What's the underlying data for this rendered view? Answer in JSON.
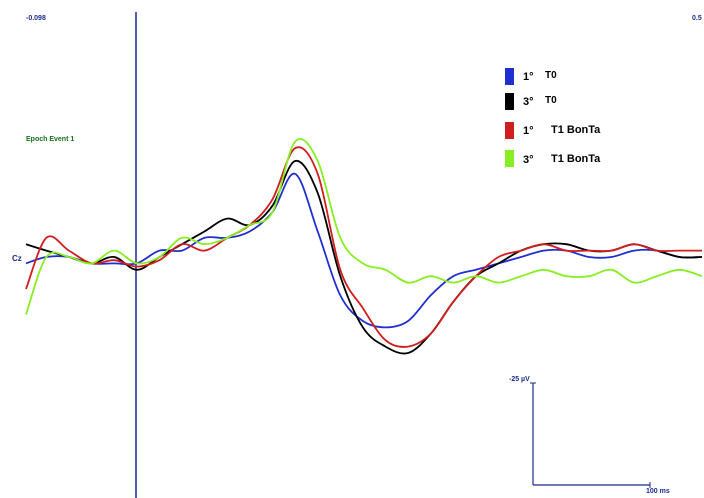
{
  "header": {
    "time_start": "-0.098",
    "time_end": "0.5",
    "epoch_label": "Epoch Event 1"
  },
  "channel_label": "Cz",
  "scale_bar": {
    "amplitude_label": "-25 µV",
    "time_label": "100 ms"
  },
  "legend": [
    {
      "order": "1°",
      "condition": "T0",
      "color": "#1f2fd0"
    },
    {
      "order": "3°",
      "condition": "T0",
      "color": "#000000"
    },
    {
      "order": "1°",
      "condition": "T1 BonTa",
      "color": "#d01e1e"
    },
    {
      "order": "3°",
      "condition": "T1 BonTa",
      "color": "#88ee22"
    }
  ],
  "colors": {
    "onset_line": "#1a2b8f",
    "channel_label": "#1a2b8f",
    "epoch_label": "#1a6e1a",
    "scale_bar": "#1a2b8f",
    "header_text": "#1a2b8f"
  },
  "chart_data": {
    "type": "line",
    "time_range": [
      -0.098,
      0.5
    ],
    "time_unit": "s",
    "x": [
      -0.098,
      -0.08,
      -0.06,
      -0.04,
      -0.02,
      0.0,
      0.02,
      0.04,
      0.06,
      0.08,
      0.1,
      0.12,
      0.14,
      0.16,
      0.18,
      0.2,
      0.22,
      0.24,
      0.26,
      0.28,
      0.3,
      0.32,
      0.34,
      0.36,
      0.38,
      0.4,
      0.42,
      0.44,
      0.46,
      0.48,
      0.5
    ],
    "series": [
      {
        "legend_index": 0,
        "color": "#1f2fd0",
        "values": [
          -2,
          0,
          0,
          -2,
          -2,
          -2,
          2,
          2,
          6,
          6,
          8,
          14,
          26,
          8,
          -12,
          -20,
          -22,
          -20,
          -12,
          -6,
          -4,
          -2,
          0,
          2,
          2,
          0,
          0,
          2,
          2,
          0,
          0
        ]
      },
      {
        "legend_index": 1,
        "color": "#000000",
        "values": [
          4,
          2,
          0,
          -2,
          0,
          -4,
          0,
          4,
          8,
          12,
          10,
          16,
          30,
          20,
          -6,
          -22,
          -28,
          -30,
          -24,
          -14,
          -6,
          -2,
          2,
          4,
          4,
          2,
          2,
          4,
          2,
          0,
          0
        ]
      },
      {
        "legend_index": 2,
        "color": "#d01e1e",
        "values": [
          -10,
          6,
          2,
          -2,
          -1,
          -3,
          -1,
          4,
          2,
          6,
          10,
          18,
          34,
          26,
          -4,
          -16,
          -26,
          -28,
          -24,
          -14,
          -6,
          0,
          2,
          4,
          2,
          2,
          2,
          4,
          2,
          2,
          2
        ]
      },
      {
        "legend_index": 3,
        "color": "#88ee22",
        "values": [
          -18,
          0,
          0,
          -2,
          2,
          -2,
          0,
          6,
          4,
          6,
          10,
          14,
          36,
          30,
          6,
          -2,
          -4,
          -8,
          -6,
          -8,
          -6,
          -8,
          -6,
          -4,
          -6,
          -6,
          -4,
          -8,
          -6,
          -4,
          -6
        ]
      }
    ]
  }
}
